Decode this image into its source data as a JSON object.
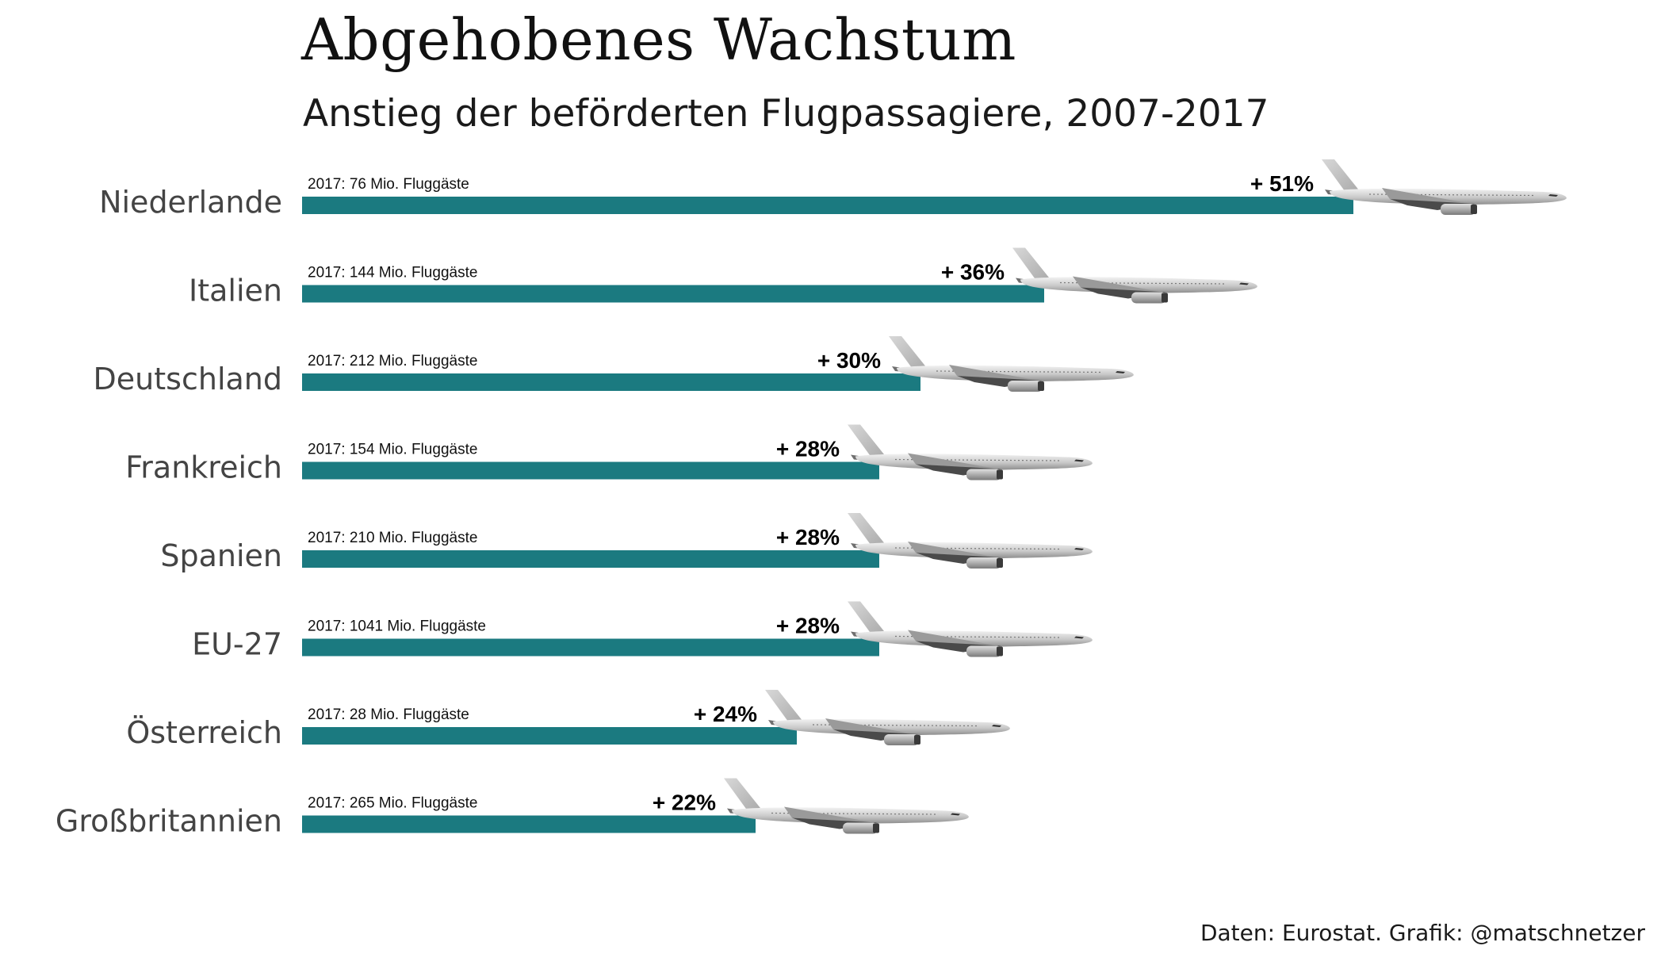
{
  "chart_data": {
    "type": "bar",
    "orientation": "horizontal",
    "title": "Abgehobenes Wachstum",
    "subtitle": "Anstieg der beförderten Flugpassagiere, 2007-2017",
    "source": "Daten: Eurostat. Grafik: @matschnetzer",
    "bar_color": "#1b7a80",
    "mark_icon": "airplane-icon",
    "categories": [
      "Niederlande",
      "Italien",
      "Deutschland",
      "Frankreich",
      "Spanien",
      "EU-27",
      "Österreich",
      "Großbritannien"
    ],
    "values": [
      51,
      36,
      30,
      28,
      28,
      28,
      24,
      22
    ],
    "value_labels": [
      "+ 51%",
      "+ 36%",
      "+ 30%",
      "+ 28%",
      "+ 28%",
      "+ 28%",
      "+ 24%",
      "+ 22%"
    ],
    "passenger_labels": [
      "2017: 76 Mio. Fluggäste",
      "2017: 144 Mio. Fluggäste",
      "2017: 212 Mio. Fluggäste",
      "2017: 154 Mio. Fluggäste",
      "2017: 210 Mio. Fluggäste",
      "2017: 1041 Mio. Fluggäste",
      "2017: 28 Mio. Fluggäste",
      "2017: 265 Mio. Fluggäste"
    ]
  }
}
